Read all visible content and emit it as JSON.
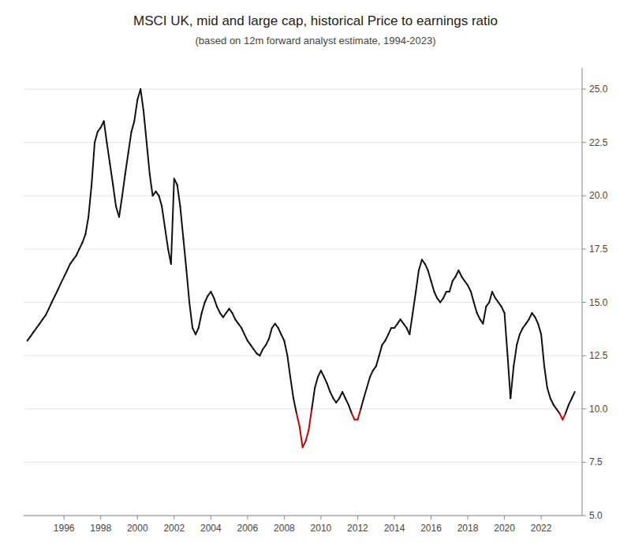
{
  "chart_data": {
    "type": "line",
    "title": "MSCI UK, mid and large cap, historical Price to earnings ratio",
    "subtitle": "(based on 12m forward analyst estimate, 1994-2023)",
    "x": [
      1994.0,
      1994.17,
      1994.33,
      1994.5,
      1994.67,
      1994.83,
      1995.0,
      1995.17,
      1995.33,
      1995.5,
      1995.67,
      1995.83,
      1996.0,
      1996.17,
      1996.33,
      1996.5,
      1996.67,
      1996.83,
      1997.0,
      1997.17,
      1997.33,
      1997.5,
      1997.67,
      1997.83,
      1998.0,
      1998.17,
      1998.33,
      1998.5,
      1998.67,
      1998.83,
      1999.0,
      1999.17,
      1999.33,
      1999.5,
      1999.67,
      1999.83,
      2000.0,
      2000.17,
      2000.33,
      2000.5,
      2000.67,
      2000.83,
      2001.0,
      2001.17,
      2001.33,
      2001.5,
      2001.67,
      2001.83,
      2002.0,
      2002.17,
      2002.33,
      2002.5,
      2002.67,
      2002.83,
      2003.0,
      2003.17,
      2003.33,
      2003.5,
      2003.67,
      2003.83,
      2004.0,
      2004.17,
      2004.33,
      2004.5,
      2004.67,
      2004.83,
      2005.0,
      2005.17,
      2005.33,
      2005.5,
      2005.67,
      2005.83,
      2006.0,
      2006.17,
      2006.33,
      2006.5,
      2006.67,
      2006.83,
      2007.0,
      2007.17,
      2007.33,
      2007.5,
      2007.67,
      2007.83,
      2008.0,
      2008.17,
      2008.33,
      2008.5,
      2008.67,
      2008.83,
      2009.0,
      2009.17,
      2009.33,
      2009.5,
      2009.67,
      2009.83,
      2010.0,
      2010.17,
      2010.33,
      2010.5,
      2010.67,
      2010.83,
      2011.0,
      2011.17,
      2011.33,
      2011.5,
      2011.67,
      2011.83,
      2012.0,
      2012.17,
      2012.33,
      2012.5,
      2012.67,
      2012.83,
      2013.0,
      2013.17,
      2013.33,
      2013.5,
      2013.67,
      2013.83,
      2014.0,
      2014.17,
      2014.33,
      2014.5,
      2014.67,
      2014.83,
      2015.0,
      2015.17,
      2015.33,
      2015.5,
      2015.67,
      2015.83,
      2016.0,
      2016.17,
      2016.33,
      2016.5,
      2016.67,
      2016.83,
      2017.0,
      2017.17,
      2017.33,
      2017.5,
      2017.67,
      2017.83,
      2018.0,
      2018.17,
      2018.33,
      2018.5,
      2018.67,
      2018.83,
      2019.0,
      2019.17,
      2019.33,
      2019.5,
      2019.67,
      2019.83,
      2020.0,
      2020.17,
      2020.33,
      2020.5,
      2020.67,
      2020.83,
      2021.0,
      2021.17,
      2021.33,
      2021.5,
      2021.67,
      2021.83,
      2022.0,
      2022.17,
      2022.33,
      2022.5,
      2022.67,
      2022.83,
      2023.0,
      2023.17,
      2023.33,
      2023.5,
      2023.67,
      2023.83
    ],
    "values": [
      13.2,
      13.4,
      13.6,
      13.8,
      14.0,
      14.2,
      14.4,
      14.7,
      15.0,
      15.3,
      15.6,
      15.9,
      16.2,
      16.5,
      16.8,
      17.0,
      17.2,
      17.5,
      17.8,
      18.2,
      19.0,
      20.5,
      22.5,
      23.0,
      23.2,
      23.5,
      22.5,
      21.5,
      20.5,
      19.5,
      19.0,
      20.0,
      21.0,
      22.0,
      23.0,
      23.5,
      24.5,
      25.0,
      24.0,
      22.5,
      21.0,
      20.0,
      20.2,
      20.0,
      19.5,
      18.5,
      17.5,
      16.8,
      20.8,
      20.5,
      19.5,
      18.0,
      16.5,
      15.0,
      13.8,
      13.5,
      13.8,
      14.5,
      15.0,
      15.3,
      15.5,
      15.2,
      14.8,
      14.5,
      14.3,
      14.5,
      14.7,
      14.5,
      14.2,
      14.0,
      13.8,
      13.5,
      13.2,
      13.0,
      12.8,
      12.6,
      12.5,
      12.8,
      13.0,
      13.3,
      13.8,
      14.0,
      13.8,
      13.5,
      13.2,
      12.5,
      11.5,
      10.5,
      9.8,
      9.2,
      8.2,
      8.5,
      9.0,
      10.0,
      11.0,
      11.5,
      11.8,
      11.5,
      11.2,
      10.8,
      10.5,
      10.3,
      10.5,
      10.8,
      10.5,
      10.2,
      9.8,
      9.5,
      9.5,
      10.0,
      10.5,
      11.0,
      11.5,
      11.8,
      12.0,
      12.5,
      13.0,
      13.2,
      13.5,
      13.8,
      13.8,
      14.0,
      14.2,
      14.0,
      13.8,
      13.5,
      14.5,
      15.5,
      16.5,
      17.0,
      16.8,
      16.5,
      16.0,
      15.5,
      15.2,
      15.0,
      15.2,
      15.5,
      15.5,
      16.0,
      16.2,
      16.5,
      16.2,
      16.0,
      15.8,
      15.5,
      15.0,
      14.5,
      14.2,
      14.0,
      14.8,
      15.0,
      15.5,
      15.2,
      15.0,
      14.8,
      14.5,
      12.5,
      10.5,
      12.0,
      13.0,
      13.5,
      13.8,
      14.0,
      14.2,
      14.5,
      14.3,
      14.0,
      13.5,
      12.0,
      11.0,
      10.5,
      10.2,
      10.0,
      9.8,
      9.5,
      9.8,
      10.2,
      10.5,
      10.8
    ],
    "color": "#111111",
    "colors": [
      "#111111",
      "#111111",
      "#111111",
      "#111111",
      "#111111",
      "#111111",
      "#111111",
      "#111111",
      "#111111",
      "#111111",
      "#111111",
      "#111111",
      "#111111",
      "#111111",
      "#111111",
      "#111111",
      "#111111",
      "#111111",
      "#111111",
      "#111111",
      "#111111",
      "#111111",
      "#111111",
      "#111111",
      "#111111",
      "#111111",
      "#111111",
      "#111111",
      "#111111",
      "#111111",
      "#111111",
      "#111111",
      "#111111",
      "#111111",
      "#111111",
      "#111111",
      "#111111",
      "#111111",
      "#111111",
      "#111111",
      "#111111",
      "#111111",
      "#111111",
      "#111111",
      "#111111",
      "#111111",
      "#111111",
      "#111111",
      "#111111",
      "#111111",
      "#111111",
      "#111111",
      "#111111",
      "#111111",
      "#111111",
      "#111111",
      "#111111",
      "#111111",
      "#111111",
      "#111111",
      "#111111",
      "#111111",
      "#111111",
      "#111111",
      "#111111",
      "#111111",
      "#111111",
      "#111111",
      "#111111",
      "#111111",
      "#111111",
      "#111111",
      "#111111",
      "#111111",
      "#111111",
      "#111111",
      "#111111",
      "#111111",
      "#111111",
      "#111111",
      "#111111",
      "#111111",
      "#111111",
      "#111111",
      "#111111",
      "#111111",
      "#111111",
      "#111111",
      "#111111",
      "#cc0000",
      "#cc0000",
      "#cc0000",
      "#cc0000",
      "#111111",
      "#111111",
      "#111111",
      "#111111",
      "#111111",
      "#111111",
      "#111111",
      "#111111",
      "#111111",
      "#111111",
      "#111111",
      "#111111",
      "#111111",
      "#111111",
      "#cc0000",
      "#cc0000",
      "#111111",
      "#111111",
      "#111111",
      "#111111",
      "#111111",
      "#111111",
      "#111111",
      "#111111",
      "#111111",
      "#111111",
      "#111111",
      "#111111",
      "#111111",
      "#111111",
      "#111111",
      "#111111",
      "#111111",
      "#111111",
      "#111111",
      "#111111",
      "#111111",
      "#111111",
      "#111111",
      "#111111",
      "#111111",
      "#111111",
      "#111111",
      "#111111",
      "#111111",
      "#111111",
      "#111111",
      "#111111",
      "#111111",
      "#111111",
      "#111111",
      "#111111",
      "#111111",
      "#111111",
      "#111111",
      "#111111",
      "#111111",
      "#111111",
      "#111111",
      "#111111",
      "#111111",
      "#111111",
      "#111111",
      "#111111",
      "#111111",
      "#111111",
      "#111111",
      "#111111",
      "#111111",
      "#111111",
      "#111111",
      "#111111",
      "#111111",
      "#111111",
      "#111111",
      "#111111",
      "#111111",
      "#111111",
      "#111111",
      "#111111",
      "#111111",
      "#111111",
      "#cc0000",
      "#111111",
      "#111111",
      "#111111",
      "#111111"
    ],
    "xlim": [
      1993.8,
      2024.23
    ],
    "ylim": [
      5.0,
      26.0
    ],
    "xticks": [
      1996,
      1998,
      2000,
      2002,
      2004,
      2006,
      2008,
      2010,
      2012,
      2014,
      2016,
      2018,
      2020,
      2022
    ],
    "yticks": [
      {
        "value": 5.0,
        "label": "5.0"
      },
      7.5,
      {
        "value": 10.0,
        "label": "10.0"
      },
      12.5,
      {
        "value": 15.0,
        "label": "15.0"
      },
      17.5,
      {
        "value": 20.0,
        "label": "20.0"
      },
      22.5,
      {
        "value": 25.0,
        "label": "25.0"
      }
    ],
    "grid": true
  }
}
